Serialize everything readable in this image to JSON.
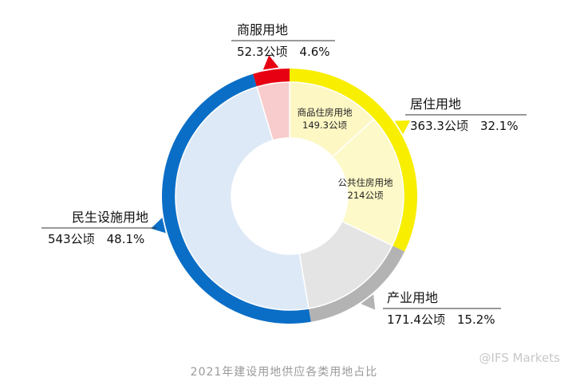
{
  "chart_data": {
    "type": "donut",
    "caption": "2021年建设用地供应各类用地占比",
    "outer_ring": [
      {
        "name": "居住用地",
        "value": 363.3,
        "unit": "公顷",
        "percent": "32.1%",
        "color": "#f7ee00"
      },
      {
        "name": "产业用地",
        "value": 171.4,
        "unit": "公顷",
        "percent": "15.2%",
        "color": "#b3b3b3"
      },
      {
        "name": "民生设施用地",
        "value": 543,
        "unit": "公顷",
        "percent": "48.1%",
        "color": "#0a6ec6"
      },
      {
        "name": "商服用地",
        "value": 52.3,
        "unit": "公顷",
        "percent": "4.6%",
        "color": "#e60012"
      }
    ],
    "inner_ring": [
      {
        "name": "商品住房用地",
        "value": 149.3,
        "unit": "公顷",
        "color": "#fdf7c4"
      },
      {
        "name": "公共住房用地",
        "value": 214,
        "unit": "公顷",
        "color": "#fdf9c8"
      },
      {
        "name": "",
        "value": 171.4,
        "color": "#e4e4e4"
      },
      {
        "name": "",
        "value": 543,
        "color": "#dde9f6"
      },
      {
        "name": "",
        "value": 52.3,
        "color": "#f8cccc"
      }
    ]
  },
  "watermark": "@IFS Markets"
}
